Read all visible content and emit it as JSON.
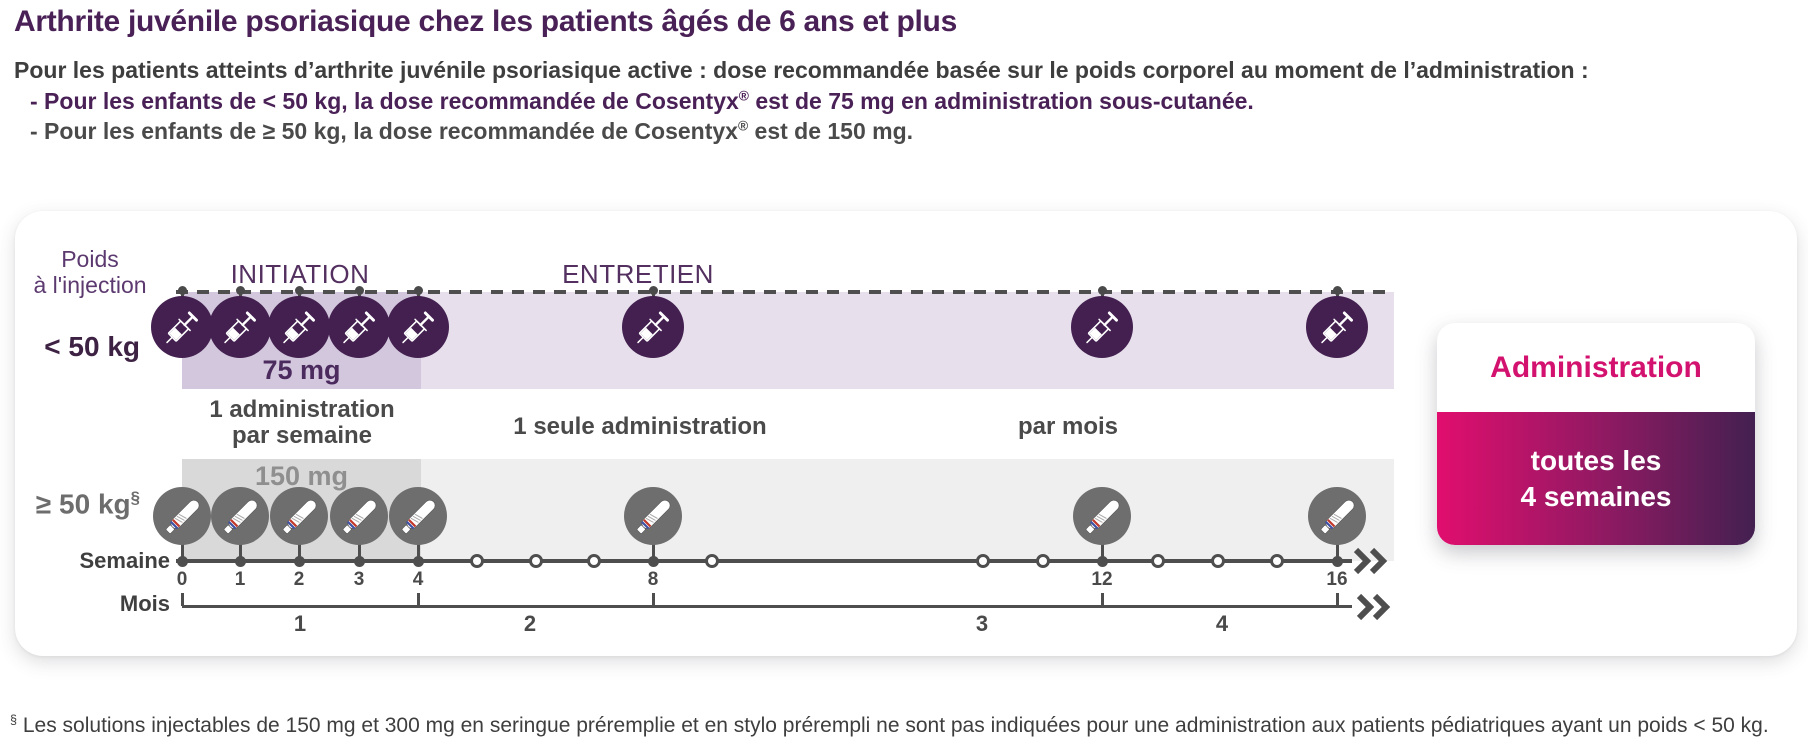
{
  "header": {
    "title": "Arthrite juvénile psoriasique chez les patients âgés de 6 ans et plus",
    "intro": "Pour les patients atteints d’arthrite juvénile psoriasique active : dose recommandée basée sur le poids corporel au moment de l’administration :",
    "bullet_under50": {
      "pre": "- Pour les enfants de < 50 kg, la dose recommandée de Cosentyx",
      "sup": "®",
      "post": " est de 75 mg en administration sous-cutanée."
    },
    "bullet_over50": {
      "pre": "- Pour les enfants de ≥ 50 kg, la dose recommandée de Cosentyx",
      "sup": "®",
      "post": " est de 150 mg."
    }
  },
  "diagram": {
    "weight_axis_label_line1": "Poids",
    "weight_axis_label_line2": "à l'injection",
    "phases": {
      "initiation": "INITIATION",
      "maintenance": "ENTRETIEN"
    },
    "rows": [
      {
        "weight_label": "< 50 kg",
        "dose_label": "75 mg",
        "device": "prefilled-syringe"
      },
      {
        "weight_label": "≥ 50 kg",
        "weight_footnote_marker": "§",
        "dose_label": "150 mg",
        "device": "prefilled-pen"
      }
    ],
    "frequency_labels": {
      "initiation_line1": "1 administration",
      "initiation_line2": "par semaine",
      "maintenance_single": "1 seule administration",
      "maintenance_permonth": "par mois"
    },
    "week_axis": {
      "label": "Semaine",
      "labeled_weeks": [
        "0",
        "1",
        "2",
        "3",
        "4",
        "8",
        "12",
        "16"
      ]
    },
    "month_axis": {
      "label": "Mois",
      "labels": [
        "1",
        "2",
        "3",
        "4"
      ]
    },
    "schedule": {
      "injection_weeks": [
        0,
        1,
        2,
        3,
        4,
        8,
        12,
        16
      ],
      "intermediate_weeks": [
        5,
        6,
        7,
        9,
        10,
        11,
        13,
        14,
        15
      ]
    },
    "admin_box": {
      "title": "Administration",
      "line1": "toutes les",
      "line2": "4 semaines"
    }
  },
  "footnote": {
    "marker": "§",
    "text": " Les solutions injectables de 150 mg et 300 mg en seringue préremplie et en stylo prérempli ne sont pas indiquées pour une administration aux patients pédiatriques ayant un poids < 50 kg."
  },
  "colors": {
    "brand_purple": "#432050",
    "title_purple": "#4a2157",
    "accent_magenta": "#d3116e",
    "gradient_start": "#e10e6e",
    "gradient_end": "#432050",
    "band_light_purple": "#e7e0ec",
    "band_medium_purple": "#d3c7dd",
    "band_light_gray": "#efefef",
    "band_medium_gray": "#d9d9d9",
    "axis_gray": "#4e4e4e"
  }
}
